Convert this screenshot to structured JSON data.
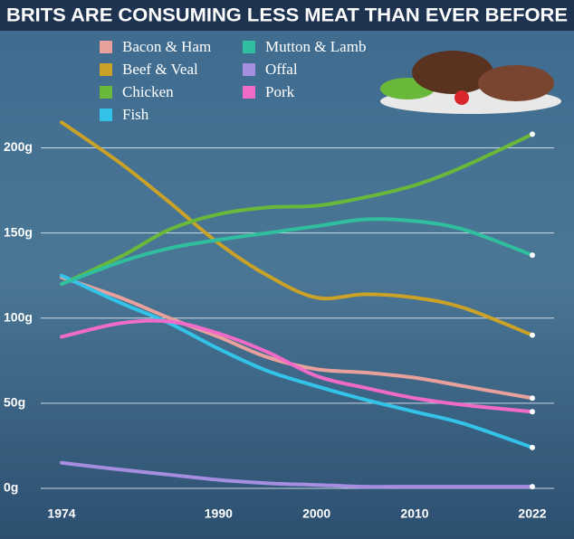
{
  "chart_data": {
    "type": "line",
    "title": "BRITS ARE CONSUMING LESS MEAT THAN EVER BEFORE",
    "x": [
      1974,
      1980,
      1985,
      1990,
      1995,
      2000,
      2005,
      2010,
      2015,
      2022
    ],
    "xlim": [
      1974,
      2022
    ],
    "xticks": [
      1974,
      1990,
      2000,
      2010,
      2022
    ],
    "ylim": [
      0,
      230
    ],
    "yticks": [
      {
        "value": 0,
        "label": "0g"
      },
      {
        "value": 50,
        "label": "50g"
      },
      {
        "value": 100,
        "label": "100g"
      },
      {
        "value": 150,
        "label": "150g"
      },
      {
        "value": 200,
        "label": "200g"
      }
    ],
    "grid": true,
    "series": [
      {
        "name": "Bacon & Ham",
        "color": "#e8a09c",
        "values": [
          124,
          112,
          100,
          89,
          77,
          70,
          68,
          65,
          60,
          53
        ]
      },
      {
        "name": "Beef & Veal",
        "color": "#c9a227",
        "values": [
          215,
          191,
          168,
          144,
          125,
          112,
          114,
          112,
          106,
          90
        ]
      },
      {
        "name": "Chicken",
        "color": "#6ab83a",
        "values": [
          120,
          136,
          152,
          161,
          165,
          166,
          171,
          178,
          189,
          208
        ]
      },
      {
        "name": "Fish",
        "color": "#33c3e8",
        "values": [
          125,
          109,
          97,
          82,
          69,
          60,
          52,
          45,
          38,
          24
        ]
      },
      {
        "name": "Mutton & Lamb",
        "color": "#2fbf9f",
        "values": [
          120,
          133,
          141,
          146,
          150,
          154,
          158,
          157,
          152,
          137
        ]
      },
      {
        "name": "Offal",
        "color": "#a58de0",
        "values": [
          15,
          11,
          8,
          5,
          3,
          2,
          1,
          1,
          1,
          1
        ]
      },
      {
        "name": "Pork",
        "color": "#f06bc8",
        "values": [
          89,
          97,
          98,
          91,
          80,
          66,
          59,
          53,
          49,
          45
        ]
      }
    ]
  }
}
